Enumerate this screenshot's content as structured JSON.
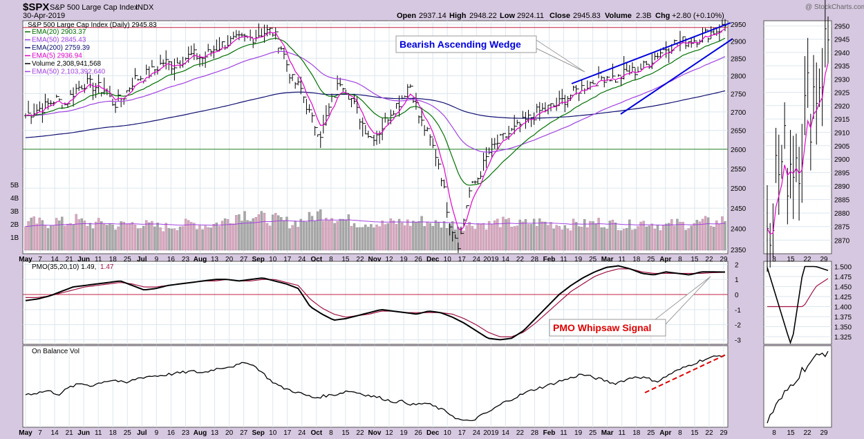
{
  "header": {
    "symbol": "$SPX",
    "name": "S&P 500 Large Cap Index",
    "exchange": "INDX",
    "date": "30-Apr-2019",
    "open_label": "Open",
    "open": "2937.14",
    "high_label": "High",
    "high": "2948.22",
    "low_label": "Low",
    "low": "2924.11",
    "close_label": "Close",
    "close": "2945.83",
    "volume_label": "Volume",
    "volume": "2.3B",
    "chg_label": "Chg",
    "chg": "+2.80 (+0.10%)",
    "watermark": "@ StockCharts.com"
  },
  "colors": {
    "background": "#d6c8e0",
    "panel": "#ffffff",
    "grid": "#dce6ee",
    "price": "#000000",
    "ema5": "#e000c8",
    "ema20": "#007000",
    "ema50": "#a040e0",
    "ema200": "#101070",
    "volume_up": "#d8a8c0",
    "volume_down": "#a8a8a8",
    "signal": "#a01040",
    "wedge": "#0000dd",
    "annotation_red": "#dd0000",
    "hline_red": "#c02040",
    "hline_green": "#208020"
  },
  "chart_data": [
    {
      "type": "line",
      "panel": "price",
      "scale": "log",
      "title": "S&P 500 Large Cap Index (Daily) 2945.83",
      "legend": [
        {
          "label": "EMA(20) 2903.37",
          "color": "#007000"
        },
        {
          "label": "EMA(50) 2845.43",
          "color": "#a040e0"
        },
        {
          "label": "EMA(200) 2759.39",
          "color": "#101070"
        },
        {
          "label": "EMA(5) 2936.94",
          "color": "#e000c8"
        },
        {
          "label": "Volume 2,308,941,568",
          "color": "#000000"
        },
        {
          "label": "EMA(50) 2,103,392,640",
          "color": "#a040e0"
        }
      ],
      "legend_placement": "top-left",
      "ylim": [
        2340,
        2960
      ],
      "yticks": [
        2350,
        2400,
        2450,
        2500,
        2550,
        2600,
        2650,
        2700,
        2750,
        2800,
        2850,
        2900,
        2950
      ],
      "volume_ticks": [
        "1B",
        "2B",
        "3B",
        "4B",
        "5B"
      ],
      "xlabels": [
        "May",
        "7",
        "14",
        "21",
        "Jun",
        "11",
        "18",
        "25",
        "Jul",
        "9",
        "16",
        "23",
        "Aug",
        "13",
        "20",
        "27",
        "Sep",
        "10",
        "17",
        "24",
        "Oct",
        "8",
        "15",
        "22",
        "Nov",
        "12",
        "19",
        "26",
        "Dec",
        "10",
        "17",
        "24",
        "2019",
        "14",
        "22",
        "28",
        "Feb",
        "11",
        "19",
        "25",
        "Mar",
        "11",
        "18",
        "25",
        "Apr",
        "8",
        "15",
        "22",
        "29"
      ],
      "close_weekly": [
        2690,
        2705,
        2715,
        2735,
        2720,
        2760,
        2780,
        2770,
        2760,
        2720,
        2745,
        2790,
        2800,
        2815,
        2840,
        2830,
        2850,
        2860,
        2850,
        2875,
        2890,
        2900,
        2905,
        2910,
        2925,
        2930,
        2880,
        2790,
        2760,
        2680,
        2640,
        2725,
        2790,
        2740,
        2680,
        2630,
        2650,
        2700,
        2730,
        2780,
        2680,
        2630,
        2560,
        2420,
        2360,
        2490,
        2530,
        2590,
        2620,
        2640,
        2660,
        2680,
        2700,
        2710,
        2720,
        2740,
        2760,
        2775,
        2790,
        2800,
        2790,
        2810,
        2815,
        2830,
        2860,
        2880,
        2895,
        2900,
        2905,
        2920,
        2930,
        2945
      ],
      "hline_upper": 2940,
      "hline_lower": 2600,
      "weekly_volume_b": [
        2.0,
        2.1,
        1.9,
        2.2,
        2.0,
        2.3,
        2.0,
        1.9,
        2.1,
        1.8,
        1.9,
        2.0,
        1.9,
        1.8,
        1.7,
        1.8,
        1.9,
        2.0,
        1.8,
        1.9,
        2.1,
        2.5,
        2.8,
        2.6,
        2.4,
        2.3,
        2.2,
        2.0,
        2.2,
        2.4,
        2.8,
        2.6,
        2.3,
        2.2,
        2.0,
        2.1,
        1.9,
        2.0,
        2.1,
        2.0,
        2.2,
        2.1,
        1.9,
        2.0,
        1.8,
        1.9,
        2.0,
        1.9,
        2.1,
        2.0,
        1.9,
        2.0,
        2.1,
        2.0,
        1.9,
        1.8,
        2.0,
        1.9,
        2.1,
        2.0,
        1.9,
        1.8,
        2.0,
        2.1,
        1.9,
        1.8,
        2.0,
        1.9,
        2.0,
        2.1,
        2.0,
        2.3
      ],
      "annotation": "Bearish Ascending Wedge"
    },
    {
      "type": "line",
      "panel": "pmo",
      "legend": [
        {
          "label": "PMO(35,20,10) 1.49,",
          "color": "#000000"
        },
        {
          "label": "1.47",
          "color": "#a01040"
        }
      ],
      "ylim": [
        -3.3,
        2.2
      ],
      "yticks": [
        -3,
        -2,
        -1,
        0,
        1,
        2
      ],
      "pmo_weekly": [
        -0.4,
        -0.3,
        -0.1,
        0.2,
        0.5,
        0.6,
        0.7,
        0.8,
        0.9,
        0.6,
        0.3,
        0.4,
        0.6,
        0.7,
        0.8,
        0.9,
        1.0,
        1.0,
        0.9,
        1.0,
        1.1,
        0.9,
        0.7,
        0.4,
        -0.8,
        -1.3,
        -1.7,
        -1.6,
        -1.4,
        -1.2,
        -1.0,
        -1.1,
        -1.2,
        -1.3,
        -1.1,
        -1.2,
        -1.5,
        -1.9,
        -2.4,
        -2.9,
        -3.0,
        -2.9,
        -2.4,
        -1.6,
        -0.8,
        0.0,
        0.6,
        1.1,
        1.5,
        1.8,
        1.9,
        1.7,
        1.4,
        1.3,
        1.5,
        1.4,
        1.3,
        1.5,
        1.5,
        1.49
      ],
      "signal_weekly": [
        -0.2,
        -0.2,
        -0.1,
        0.1,
        0.3,
        0.5,
        0.6,
        0.7,
        0.8,
        0.7,
        0.5,
        0.5,
        0.6,
        0.7,
        0.8,
        0.9,
        0.9,
        1.0,
        0.9,
        0.9,
        1.0,
        1.0,
        0.8,
        0.6,
        -0.3,
        -0.9,
        -1.3,
        -1.5,
        -1.4,
        -1.3,
        -1.1,
        -1.1,
        -1.2,
        -1.2,
        -1.2,
        -1.2,
        -1.3,
        -1.6,
        -2.0,
        -2.5,
        -2.8,
        -2.8,
        -2.5,
        -1.9,
        -1.2,
        -0.5,
        0.2,
        0.7,
        1.2,
        1.5,
        1.7,
        1.7,
        1.5,
        1.4,
        1.4,
        1.4,
        1.4,
        1.4,
        1.45,
        1.47
      ],
      "annotation": "PMO Whipsaw Signal"
    },
    {
      "type": "line",
      "panel": "obv",
      "legend": [
        {
          "label": "On Balance Vol",
          "color": "#000000"
        }
      ],
      "obv_weekly": [
        0.4,
        0.42,
        0.45,
        0.4,
        0.5,
        0.55,
        0.52,
        0.58,
        0.6,
        0.55,
        0.62,
        0.65,
        0.66,
        0.68,
        0.7,
        0.72,
        0.7,
        0.75,
        0.78,
        0.8,
        0.85,
        0.75,
        0.6,
        0.5,
        0.45,
        0.4,
        0.35,
        0.38,
        0.4,
        0.45,
        0.42,
        0.38,
        0.35,
        0.3,
        0.3,
        0.25,
        0.28,
        0.22,
        0.15,
        0.05,
        0.02,
        0.1,
        0.18,
        0.28,
        0.35,
        0.42,
        0.48,
        0.52,
        0.58,
        0.62,
        0.68,
        0.64,
        0.6,
        0.55,
        0.6,
        0.65,
        0.62,
        0.58,
        0.68,
        0.75,
        0.82,
        0.88,
        0.92,
        0.95
      ]
    }
  ]
}
